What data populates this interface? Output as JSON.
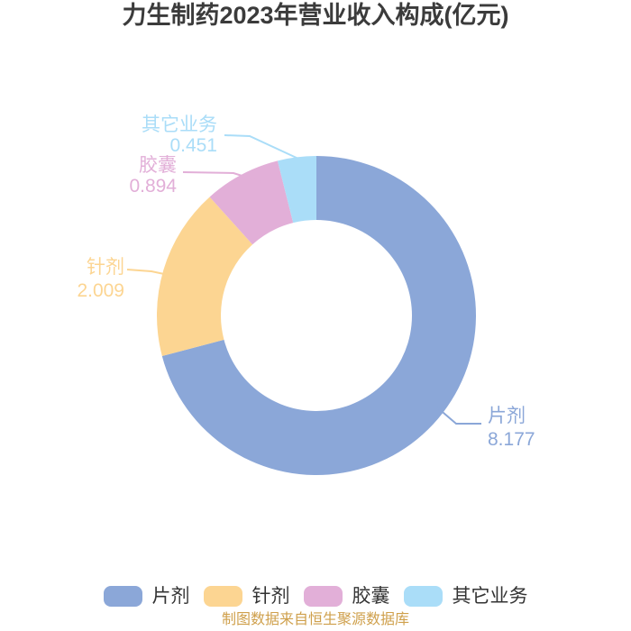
{
  "title": "力生制药2023年营业收入构成(亿元)",
  "source_note": "制图数据来自恒生聚源数据库",
  "chart_data": {
    "type": "pie",
    "variant": "donut",
    "title": "力生制药2023年营业收入构成(亿元)",
    "unit": "亿元",
    "categories": [
      "片剂",
      "针剂",
      "胶囊",
      "其它业务"
    ],
    "values": [
      8.177,
      2.009,
      0.894,
      0.451
    ],
    "colors": [
      "#8BA7D8",
      "#FCD592",
      "#E2AFD8",
      "#AADDF8"
    ],
    "total": 11.531,
    "start": "top",
    "direction": "clockwise",
    "inner_radius_ratio": 0.6,
    "label_format": "category + value",
    "legend_position": "bottom"
  },
  "legend": {
    "items": [
      {
        "label": "片剂",
        "color": "#8BA7D8"
      },
      {
        "label": "针剂",
        "color": "#FCD592"
      },
      {
        "label": "胶囊",
        "color": "#E2AFD8"
      },
      {
        "label": "其它业务",
        "color": "#AADDF8"
      }
    ]
  },
  "styles": {
    "title_color": "#3B3B3B",
    "legend_text_color": "#333333",
    "source_note_color": "#CFA04C",
    "background": "#FFFFFF"
  }
}
